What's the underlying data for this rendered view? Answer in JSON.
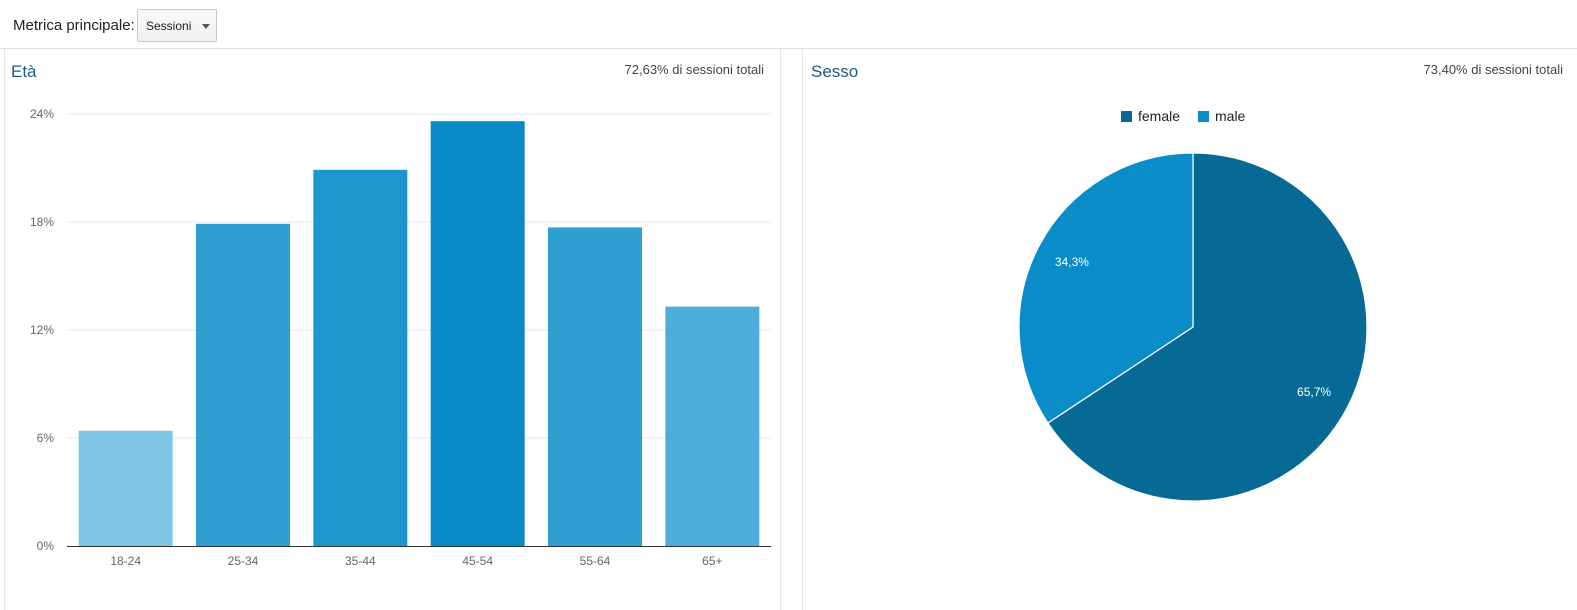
{
  "toolbar": {
    "metric_label": "Metrica principale:",
    "metric_selected": "Sessioni"
  },
  "age_panel": {
    "title": "Età",
    "subtitle": "72,63% di sessioni totali"
  },
  "gender_panel": {
    "title": "Sesso",
    "subtitle": "73,40% di sessioni totali"
  },
  "chart_data": [
    {
      "type": "bar",
      "title": "Età",
      "categories": [
        "18-24",
        "25-34",
        "35-44",
        "45-54",
        "55-64",
        "65+"
      ],
      "values": [
        6.4,
        17.9,
        20.9,
        23.6,
        17.7,
        13.3
      ],
      "unit": "%",
      "ylim": [
        0,
        24
      ],
      "yticks": [
        "0%",
        "6%",
        "12%",
        "18%",
        "24%"
      ],
      "colors": [
        "#80c6e6",
        "#2e9fd1",
        "#1e95cd",
        "#078ac6",
        "#2e9fd1",
        "#4daed9"
      ],
      "grid": true
    },
    {
      "type": "pie",
      "title": "Sesso",
      "labels": [
        "female",
        "male"
      ],
      "values": [
        65.7,
        34.3
      ],
      "value_labels": [
        "65,7%",
        "34,3%"
      ],
      "colors": [
        "#076a94",
        "#0a8cc8"
      ],
      "legend": "top"
    }
  ]
}
